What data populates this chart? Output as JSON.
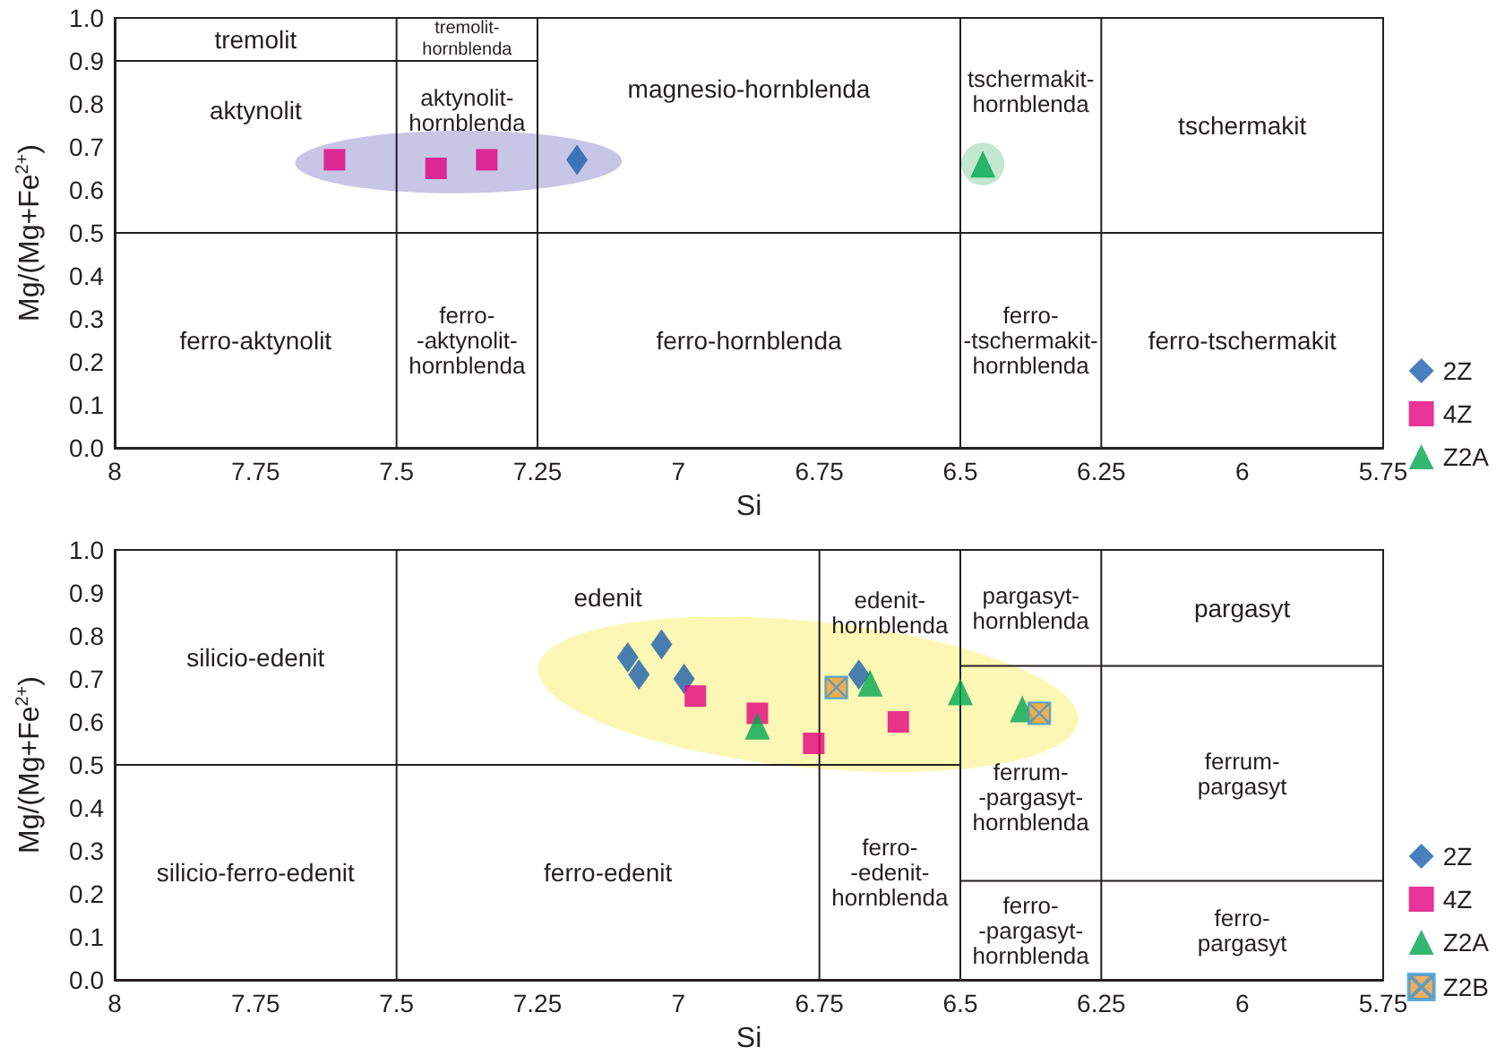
{
  "chart_data": [
    {
      "type": "scatter",
      "xlabel": "Si",
      "ylabel": "Mg/(Mg+Fe$^{2+}$)",
      "xlim": [
        8,
        5.75
      ],
      "ylim": [
        0,
        1
      ],
      "xticks": [
        8,
        7.75,
        7.5,
        7.25,
        7,
        6.75,
        6.5,
        6.25,
        6,
        5.75
      ],
      "yticks": [
        {
          "value": 0,
          "label": "0.0"
        },
        {
          "value": 0.1,
          "label": "0.1"
        },
        {
          "value": 0.2,
          "label": "0.2"
        },
        {
          "value": 0.3,
          "label": "0.3"
        },
        {
          "value": 0.4,
          "label": "0.4"
        },
        {
          "value": 0.5,
          "label": "0.5"
        },
        {
          "value": 0.6,
          "label": "0.6"
        },
        {
          "value": 0.7,
          "label": "0.7"
        },
        {
          "value": 0.8,
          "label": "0.8"
        },
        {
          "value": 0.9,
          "label": "0.9"
        },
        {
          "value": 1,
          "label": "1.0"
        }
      ],
      "legend": "right",
      "series": [
        {
          "name": "2Z",
          "color": "#1a5fac",
          "marker": "diamond",
          "x": [
            7.18
          ],
          "values": [
            0.67
          ]
        },
        {
          "name": "4Z",
          "color": "#e4007f",
          "marker": "square",
          "x": [
            7.61,
            7.43,
            7.34
          ],
          "values": [
            0.67,
            0.65,
            0.67
          ]
        },
        {
          "name": "Z2A",
          "color": "#00a651",
          "marker": "triangle",
          "x": [
            6.46
          ],
          "values": [
            0.66
          ]
        },
        {
          "type": "line",
          "color": "#231f20",
          "marker": "none",
          "x": [
            8,
            5.75
          ],
          "values": [
            0.5,
            0.5
          ]
        },
        {
          "type": "line",
          "color": "#231f20",
          "marker": "none",
          "x": [
            8,
            7.25
          ],
          "values": [
            0.9,
            0.9
          ]
        },
        {
          "type": "line",
          "color": "#231f20",
          "marker": "none",
          "x": [
            7.5,
            7.5
          ],
          "values": [
            0,
            1
          ]
        },
        {
          "type": "line",
          "color": "#231f20",
          "marker": "none",
          "x": [
            7.25,
            7.25
          ],
          "values": [
            0,
            1
          ]
        },
        {
          "type": "line",
          "color": "#231f20",
          "marker": "none",
          "x": [
            6.5,
            6.5
          ],
          "values": [
            0,
            1
          ]
        },
        {
          "type": "line",
          "color": "#231f20",
          "marker": "none",
          "x": [
            6.25,
            6.25
          ],
          "values": [
            0,
            1
          ]
        }
      ],
      "annotations": [
        "tremolit",
        "tremolit-\nhornblenda",
        "magnesio-hornblenda",
        "tschermakit-\nhornblenda",
        "tschermakit",
        "aktynolit",
        "aktynolit-\nhornblenda",
        "ferro-aktynolit",
        "ferro-\n-aktynolit-\nhornblenda",
        "ferro-hornblenda",
        "ferro-\n-tschermakit-\nhornblenda",
        "ferro-tschermakit"
      ]
    },
    {
      "type": "scatter",
      "xlabel": "Si",
      "ylabel": "Mg/(Mg+Fe$^{2+}$)",
      "xlim": [
        8,
        5.75
      ],
      "ylim": [
        0,
        1
      ],
      "xticks": [
        8,
        7.75,
        7.5,
        7.25,
        7,
        6.75,
        6.5,
        6.25,
        6,
        5.75
      ],
      "yticks": [
        {
          "value": 0,
          "label": "0.0"
        },
        {
          "value": 0.1,
          "label": "0.1"
        },
        {
          "value": 0.2,
          "label": "0.2"
        },
        {
          "value": 0.3,
          "label": "0.3"
        },
        {
          "value": 0.4,
          "label": "0.4"
        },
        {
          "value": 0.5,
          "label": "0.5"
        },
        {
          "value": 0.6,
          "label": "0.6"
        },
        {
          "value": 0.7,
          "label": "0.7"
        },
        {
          "value": 0.8,
          "label": "0.8"
        },
        {
          "value": 0.9,
          "label": "0.9"
        },
        {
          "value": 1,
          "label": "1.0"
        }
      ],
      "legend": "right",
      "series": [
        {
          "name": "2Z",
          "color": "#1a5fac",
          "marker": "diamond",
          "x": [
            7.09,
            7.07,
            7.03,
            6.99,
            6.68
          ],
          "values": [
            0.75,
            0.71,
            0.78,
            0.7,
            0.71
          ]
        },
        {
          "name": "4Z",
          "color": "#e4007f",
          "marker": "square",
          "x": [
            6.97,
            6.86,
            6.76,
            6.61
          ],
          "values": [
            0.66,
            0.62,
            0.55,
            0.6
          ]
        },
        {
          "name": "Z2A",
          "color": "#00a651",
          "marker": "triangle",
          "x": [
            6.86,
            6.66,
            6.5,
            6.39
          ],
          "values": [
            0.59,
            0.69,
            0.67,
            0.63
          ]
        },
        {
          "name": "Z2B",
          "color": "#f39a2e",
          "marker": "cross",
          "x": [
            6.72,
            6.36
          ],
          "values": [
            0.68,
            0.62
          ]
        },
        {
          "type": "line",
          "color": "#231f20",
          "marker": "none",
          "x": [
            8,
            6.5
          ],
          "values": [
            0.5,
            0.5
          ]
        },
        {
          "type": "line",
          "color": "#231f20",
          "marker": "none",
          "x": [
            6.5,
            5.75
          ],
          "values": [
            0.73,
            0.73
          ]
        },
        {
          "type": "line",
          "color": "#231f20",
          "marker": "none",
          "x": [
            6.5,
            5.75
          ],
          "values": [
            0.23,
            0.23
          ]
        },
        {
          "type": "line",
          "color": "#231f20",
          "marker": "none",
          "x": [
            7.5,
            7.5
          ],
          "values": [
            0,
            1
          ]
        },
        {
          "type": "line",
          "color": "#231f20",
          "marker": "none",
          "x": [
            6.75,
            6.75
          ],
          "values": [
            0,
            1
          ]
        },
        {
          "type": "line",
          "color": "#231f20",
          "marker": "none",
          "x": [
            6.5,
            6.5
          ],
          "values": [
            0,
            1
          ]
        },
        {
          "type": "line",
          "color": "#231f20",
          "marker": "none",
          "x": [
            6.25,
            6.25
          ],
          "values": [
            0,
            1
          ]
        }
      ],
      "annotations": [
        "silicio-edenit",
        "edenit",
        "edenit-\nhornblenda",
        "pargasyt-\nhornblenda",
        "pargasyt",
        "ferrum-\n-pargasyt-\nhornblenda",
        "ferrum-\npargasyt",
        "silicio-ferro-edenit",
        "ferro-edenit",
        "ferro-\n-edenit-\nhornblenda",
        "ferro-\n-pargasyt-\nhornblenda",
        "ferro-\npargasyt"
      ]
    }
  ]
}
